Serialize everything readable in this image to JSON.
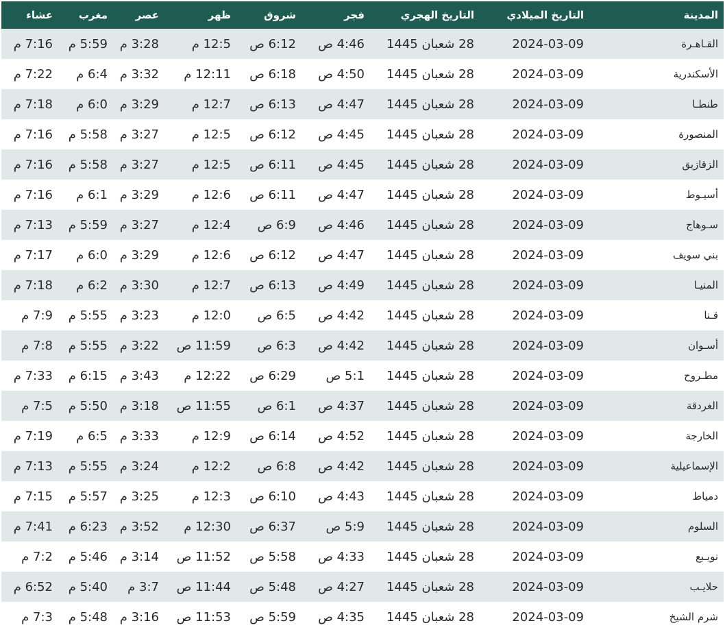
{
  "headers": [
    "المدينة",
    "التاريخ الميلادي",
    "التاريخ الهجري",
    "فجر",
    "شروق",
    "ظهر",
    "عصر",
    "مغرب",
    "عشاء"
  ],
  "colors": {
    "header_bg": "#1e5c52",
    "stripe": "#e2e8ea"
  },
  "rows": [
    [
      "القـاهـرة",
      "2024-03-09",
      "28 شعبان 1445",
      "4:46 ص",
      "6:12 ص",
      "12:5 م",
      "3:28 م",
      "5:59 م",
      "7:16 م"
    ],
    [
      "الأسكندرية",
      "2024-03-09",
      "28 شعبان 1445",
      "4:50 ص",
      "6:18 ص",
      "12:11 م",
      "3:32 م",
      "6:4 م",
      "7:22 م"
    ],
    [
      "طنطـا",
      "2024-03-09",
      "28 شعبان 1445",
      "4:47 ص",
      "6:13 ص",
      "12:7 م",
      "3:29 م",
      "6:0 م",
      "7:18 م"
    ],
    [
      "المنصورة",
      "2024-03-09",
      "28 شعبان 1445",
      "4:45 ص",
      "6:12 ص",
      "12:5 م",
      "3:27 م",
      "5:58 م",
      "7:16 م"
    ],
    [
      "الزقازيق",
      "2024-03-09",
      "28 شعبان 1445",
      "4:45 ص",
      "6:11 ص",
      "12:5 م",
      "3:27 م",
      "5:58 م",
      "7:16 م"
    ],
    [
      "أسيـوط",
      "2024-03-09",
      "28 شعبان 1445",
      "4:47 ص",
      "6:11 ص",
      "12:6 م",
      "3:29 م",
      "6:1 م",
      "7:16 م"
    ],
    [
      "سـوهاج",
      "2024-03-09",
      "28 شعبان 1445",
      "4:46 ص",
      "6:9 ص",
      "12:4 م",
      "3:27 م",
      "5:59 م",
      "7:13 م"
    ],
    [
      "بني سويف",
      "2024-03-09",
      "28 شعبان 1445",
      "4:47 ص",
      "6:12 ص",
      "12:6 م",
      "3:29 م",
      "6:0 م",
      "7:17 م"
    ],
    [
      "المنيـا",
      "2024-03-09",
      "28 شعبان 1445",
      "4:49 ص",
      "6:13 ص",
      "12:7 م",
      "3:30 م",
      "6:2 م",
      "7:18 م"
    ],
    [
      "قـنا",
      "2024-03-09",
      "28 شعبان 1445",
      "4:42 ص",
      "6:5 ص",
      "12:0 م",
      "3:23 م",
      "5:55 م",
      "7:9 م"
    ],
    [
      "أسـوان",
      "2024-03-09",
      "28 شعبان 1445",
      "4:42 ص",
      "6:3 ص",
      "11:59 ص",
      "3:22 م",
      "5:55 م",
      "7:8 م"
    ],
    [
      "مطـروح",
      "2024-03-09",
      "28 شعبان 1445",
      "5:1 ص",
      "6:29 ص",
      "12:22 م",
      "3:43 م",
      "6:15 م",
      "7:33 م"
    ],
    [
      "الغردقة",
      "2024-03-09",
      "28 شعبان 1445",
      "4:37 ص",
      "6:1 ص",
      "11:55 ص",
      "3:18 م",
      "5:50 م",
      "7:5 م"
    ],
    [
      "الخارجة",
      "2024-03-09",
      "28 شعبان 1445",
      "4:52 ص",
      "6:14 ص",
      "12:9 م",
      "3:33 م",
      "6:5 م",
      "7:19 م"
    ],
    [
      "الإسماعيلية",
      "2024-03-09",
      "28 شعبان 1445",
      "4:42 ص",
      "6:8 ص",
      "12:2 م",
      "3:24 م",
      "5:55 م",
      "7:13 م"
    ],
    [
      "دمياط",
      "2024-03-09",
      "28 شعبان 1445",
      "4:43 ص",
      "6:10 ص",
      "12:3 م",
      "3:25 م",
      "5:57 م",
      "7:15 م"
    ],
    [
      "السلوم",
      "2024-03-09",
      "28 شعبان 1445",
      "5:9 ص",
      "6:37 ص",
      "12:30 م",
      "3:52 م",
      "6:23 م",
      "7:41 م"
    ],
    [
      "نويـبع",
      "2024-03-09",
      "28 شعبان 1445",
      "4:33 ص",
      "5:58 ص",
      "11:52 ص",
      "3:14 م",
      "5:46 م",
      "7:2 م"
    ],
    [
      "حلايـب",
      "2024-03-09",
      "28 شعبان 1445",
      "4:27 ص",
      "5:48 ص",
      "11:44 ص",
      "3:7 م",
      "5:40 م",
      "6:52 م"
    ],
    [
      "شرم الشيخ",
      "2024-03-09",
      "28 شعبان 1445",
      "4:35 ص",
      "5:59 ص",
      "11:53 ص",
      "3:16 م",
      "5:48 م",
      "7:3 م"
    ]
  ]
}
